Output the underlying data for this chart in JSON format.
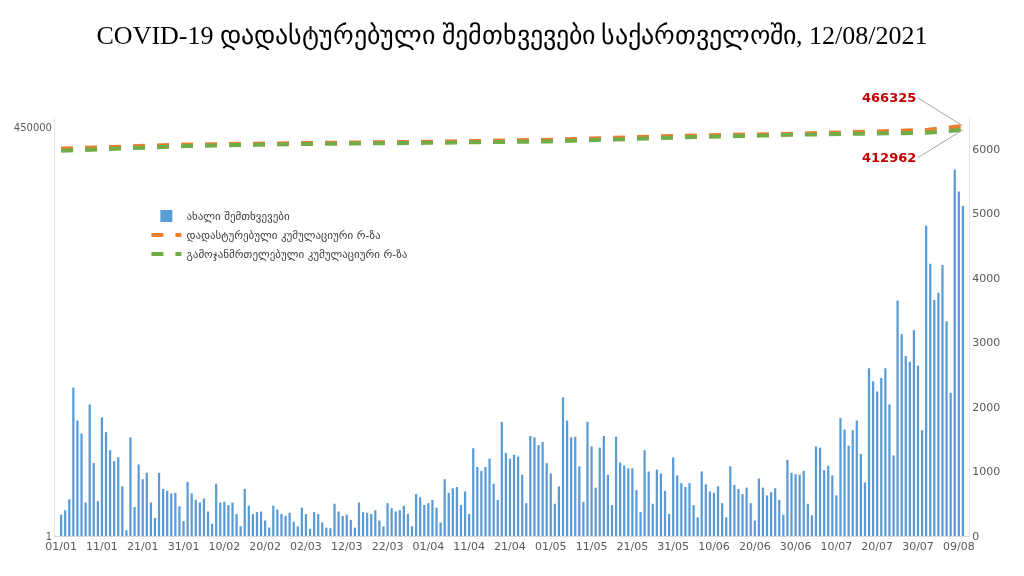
{
  "chart_data": {
    "type": "bar",
    "title": "COVID-19 დადასტურებული შემთხვევები საქართველოში, 12/08/2021",
    "categories": [
      "01/01",
      null,
      null,
      null,
      null,
      null,
      null,
      null,
      null,
      null,
      "11/01",
      null,
      null,
      null,
      null,
      null,
      null,
      null,
      null,
      null,
      "21/01",
      null,
      null,
      null,
      null,
      null,
      null,
      null,
      null,
      null,
      "31/01",
      null,
      null,
      null,
      null,
      null,
      null,
      null,
      null,
      null,
      "10/02",
      null,
      null,
      null,
      null,
      null,
      null,
      null,
      null,
      null,
      "20/02",
      null,
      null,
      null,
      null,
      null,
      null,
      null,
      null,
      null,
      "02/03",
      null,
      null,
      null,
      null,
      null,
      null,
      null,
      null,
      null,
      "12/03",
      null,
      null,
      null,
      null,
      null,
      null,
      null,
      null,
      null,
      "22/03",
      null,
      null,
      null,
      null,
      null,
      null,
      null,
      null,
      null,
      "01/04",
      null,
      null,
      null,
      null,
      null,
      null,
      null,
      null,
      null,
      "11/04",
      null,
      null,
      null,
      null,
      null,
      null,
      null,
      null,
      null,
      "21/04",
      null,
      null,
      null,
      null,
      null,
      null,
      null,
      null,
      null,
      "01/05",
      null,
      null,
      null,
      null,
      null,
      null,
      null,
      null,
      null,
      "11/05",
      null,
      null,
      null,
      null,
      null,
      null,
      null,
      null,
      null,
      "21/05",
      null,
      null,
      null,
      null,
      null,
      null,
      null,
      null,
      null,
      "31/05",
      null,
      null,
      null,
      null,
      null,
      null,
      null,
      null,
      null,
      "10/06",
      null,
      null,
      null,
      null,
      null,
      null,
      null,
      null,
      null,
      "20/06",
      null,
      null,
      null,
      null,
      null,
      null,
      null,
      null,
      null,
      "30/06",
      null,
      null,
      null,
      null,
      null,
      null,
      null,
      null,
      null,
      "10/07",
      null,
      null,
      null,
      null,
      null,
      null,
      null,
      null,
      null,
      "20/07",
      null,
      null,
      null,
      null,
      null,
      null,
      null,
      null,
      null,
      "30/07",
      null,
      null,
      null,
      null,
      null,
      null,
      null,
      null,
      null,
      "09/08",
      null
    ],
    "series": [
      {
        "name": "ახალი შემთხვევები",
        "axis": "y2",
        "color": "#5b9bd5",
        "values": [
          330,
          400,
          570,
          2300,
          1790,
          1590,
          520,
          2040,
          1130,
          540,
          1840,
          1610,
          1330,
          1160,
          1220,
          770,
          90,
          1530,
          450,
          1110,
          880,
          980,
          520,
          280,
          980,
          730,
          700,
          660,
          670,
          460,
          230,
          840,
          660,
          560,
          520,
          580,
          380,
          190,
          810,
          520,
          530,
          480,
          520,
          340,
          150,
          730,
          470,
          340,
          370,
          380,
          240,
          130,
          470,
          410,
          340,
          310,
          360,
          220,
          150,
          440,
          340,
          110,
          370,
          340,
          210,
          130,
          120,
          500,
          380,
          310,
          330,
          250,
          130,
          520,
          370,
          360,
          340,
          400,
          240,
          150,
          510,
          430,
          380,
          400,
          470,
          340,
          150,
          650,
          600,
          480,
          510,
          560,
          440,
          210,
          880,
          670,
          740,
          760,
          480,
          690,
          340,
          1360,
          1070,
          1010,
          1070,
          1200,
          810,
          560,
          1770,
          1290,
          1200,
          1260,
          1230,
          950,
          510,
          1550,
          1530,
          1410,
          1460,
          1130,
          970,
          500,
          770,
          2150,
          1790,
          1530,
          1540,
          1080,
          530,
          1770,
          1390,
          750,
          1370,
          1550,
          950,
          480,
          1540,
          1140,
          1090,
          1050,
          1050,
          710,
          370,
          1330,
          1000,
          500,
          1030,
          970,
          700,
          340,
          1220,
          940,
          820,
          760,
          820,
          480,
          290,
          1000,
          800,
          690,
          670,
          770,
          510,
          290,
          1080,
          790,
          730,
          650,
          750,
          510,
          240,
          890,
          750,
          630,
          680,
          740,
          560,
          330,
          1180,
          980,
          960,
          950,
          1010,
          500,
          320,
          1390,
          1370,
          1020,
          1090,
          940,
          630,
          1830,
          1650,
          1400,
          1640,
          1790,
          1270,
          830,
          2600,
          2400,
          2240,
          2450,
          2600,
          2040,
          1250,
          3650,
          3130,
          2790,
          2700,
          3190,
          2640,
          1640,
          4810,
          4220,
          3660,
          3770,
          4200,
          3330,
          2220,
          5680,
          5340,
          5120
        ]
      },
      {
        "name": "დადასტურებული კუმულაციური რ-ზა",
        "type": "line",
        "line_style": "dashed",
        "color": "#ed7d31",
        "values": [
          227000,
          null,
          null,
          null,
          null,
          null,
          null,
          null,
          null,
          null,
          null,
          null,
          null,
          null,
          null,
          null,
          null,
          null,
          null,
          null,
          null,
          null,
          null,
          null,
          null,
          null,
          null,
          null,
          null,
          null,
          null,
          258000,
          null,
          null,
          null,
          null,
          null,
          null,
          null,
          null,
          null,
          null,
          null,
          null,
          null,
          null,
          null,
          null,
          null,
          null,
          null,
          null,
          null,
          null,
          null,
          null,
          null,
          null,
          null,
          270000,
          null,
          null,
          null,
          null,
          null,
          null,
          null,
          null,
          null,
          null,
          null,
          null,
          null,
          null,
          null,
          null,
          null,
          null,
          null,
          null,
          null,
          null,
          null,
          null,
          null,
          null,
          null,
          null,
          null,
          null,
          282000,
          null,
          null,
          null,
          null,
          null,
          null,
          null,
          null,
          null,
          null,
          null,
          null,
          null,
          null,
          null,
          null,
          null,
          null,
          null,
          null,
          null,
          null,
          null,
          null,
          null,
          null,
          null,
          null,
          null,
          300000,
          null,
          null,
          null,
          null,
          null,
          null,
          null,
          null,
          null,
          null,
          null,
          null,
          null,
          null,
          null,
          null,
          null,
          null,
          null,
          null,
          null,
          null,
          null,
          null,
          null,
          null,
          null,
          null,
          null,
          null,
          340000,
          null,
          null,
          null,
          null,
          null,
          null,
          null,
          null,
          null,
          null,
          null,
          null,
          null,
          null,
          null,
          null,
          null,
          null,
          null,
          null,
          null,
          null,
          null,
          null,
          null,
          null,
          null,
          null,
          null,
          365000,
          null,
          null,
          null,
          null,
          null,
          null,
          null,
          null,
          null,
          null,
          null,
          null,
          null,
          null,
          null,
          null,
          null,
          null,
          null,
          null,
          null,
          null,
          null,
          null,
          null,
          null,
          null,
          null,
          null,
          null,
          410000,
          null,
          null,
          null,
          null,
          null,
          null,
          null,
          null,
          466325
        ]
      },
      {
        "name": "გამოჯანმრთელებული კუმულაციური რ-ზა",
        "type": "line",
        "line_style": "dashed",
        "color": "#70ad47",
        "values": [
          211000,
          null,
          null,
          null,
          null,
          null,
          null,
          null,
          null,
          null,
          null,
          null,
          null,
          null,
          null,
          null,
          null,
          null,
          null,
          null,
          null,
          null,
          null,
          null,
          null,
          null,
          null,
          null,
          null,
          null,
          null,
          246000,
          null,
          null,
          null,
          null,
          null,
          null,
          null,
          null,
          null,
          null,
          null,
          null,
          null,
          null,
          null,
          null,
          null,
          null,
          null,
          null,
          null,
          null,
          null,
          null,
          null,
          null,
          null,
          262000,
          null,
          null,
          null,
          null,
          null,
          null,
          null,
          null,
          null,
          null,
          null,
          null,
          null,
          null,
          null,
          null,
          null,
          null,
          null,
          null,
          null,
          null,
          null,
          null,
          null,
          null,
          null,
          null,
          null,
          null,
          272000,
          null,
          null,
          null,
          null,
          null,
          null,
          null,
          null,
          null,
          null,
          null,
          null,
          null,
          null,
          null,
          null,
          null,
          null,
          null,
          null,
          null,
          null,
          null,
          null,
          null,
          null,
          null,
          null,
          null,
          285000,
          null,
          null,
          null,
          null,
          null,
          null,
          null,
          null,
          null,
          null,
          null,
          null,
          null,
          null,
          null,
          null,
          null,
          null,
          null,
          null,
          null,
          null,
          null,
          null,
          null,
          null,
          null,
          null,
          null,
          null,
          322000,
          null,
          null,
          null,
          null,
          null,
          null,
          null,
          null,
          null,
          null,
          null,
          null,
          null,
          null,
          null,
          null,
          null,
          null,
          null,
          null,
          null,
          null,
          null,
          null,
          null,
          null,
          null,
          null,
          null,
          353000,
          null,
          null,
          null,
          null,
          null,
          null,
          null,
          null,
          null,
          null,
          null,
          null,
          null,
          null,
          null,
          null,
          null,
          null,
          null,
          null,
          null,
          null,
          null,
          null,
          null,
          null,
          null,
          null,
          null,
          null,
          375000,
          null,
          null,
          null,
          null,
          null,
          null,
          null,
          null,
          412962
        ]
      }
    ],
    "log": "y",
    "ylim": [
      1,
      600000
    ],
    "yticks": [
      1,
      450000
    ],
    "y2lim": [
      0,
      6480
    ],
    "y2ticks": [
      0,
      1000,
      2000,
      3000,
      4000,
      5000,
      6000
    ],
    "annotations": [
      {
        "text": "466325",
        "y": 466325
      },
      {
        "text": "412962",
        "y": 412962
      }
    ],
    "legend": "top left"
  }
}
